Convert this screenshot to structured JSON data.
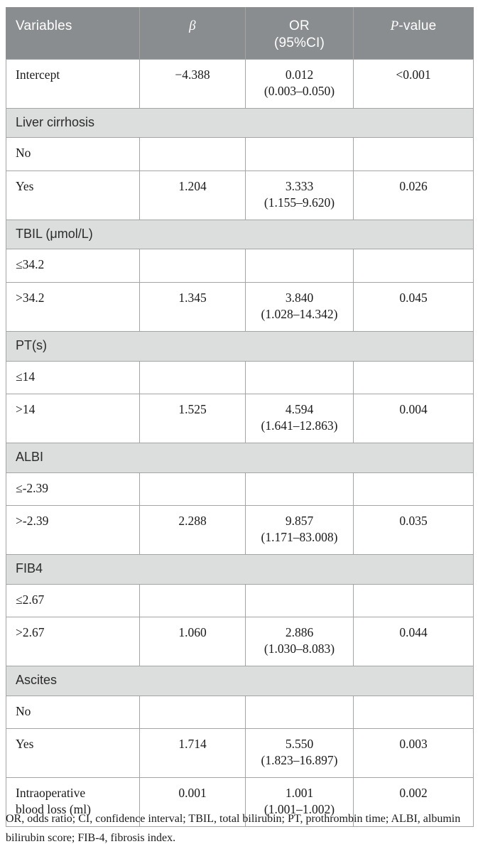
{
  "table": {
    "header": [
      {
        "key": "variables",
        "label": "Variables"
      },
      {
        "key": "beta",
        "label": "β",
        "italic": true
      },
      {
        "key": "or",
        "label": "OR (95%CI)",
        "lines": [
          "OR",
          "(95%CI)"
        ]
      },
      {
        "key": "pvalue",
        "label": "P-value",
        "italic_prefix": "P",
        "rest": "-value"
      }
    ],
    "rows": [
      {
        "type": "data",
        "cells": [
          "Intercept",
          "−4.388",
          [
            "0.012",
            "(0.003–0.050)"
          ],
          "<0.001"
        ]
      },
      {
        "type": "section",
        "label": "Liver cirrhosis"
      },
      {
        "type": "data",
        "cells": [
          "No",
          "",
          "",
          ""
        ]
      },
      {
        "type": "data",
        "cells": [
          "Yes",
          "1.204",
          [
            "3.333",
            "(1.155–9.620)"
          ],
          "0.026"
        ]
      },
      {
        "type": "section",
        "label": "TBIL (μmol/L)"
      },
      {
        "type": "data",
        "cells": [
          "≤34.2",
          "",
          "",
          ""
        ]
      },
      {
        "type": "data",
        "cells": [
          ">34.2",
          "1.345",
          [
            "3.840",
            "(1.028–14.342)"
          ],
          "0.045"
        ]
      },
      {
        "type": "section",
        "label": "PT(s)"
      },
      {
        "type": "data",
        "cells": [
          "≤14",
          "",
          "",
          ""
        ]
      },
      {
        "type": "data",
        "cells": [
          ">14",
          "1.525",
          [
            "4.594",
            "(1.641–12.863)"
          ],
          "0.004"
        ]
      },
      {
        "type": "section",
        "label": "ALBI"
      },
      {
        "type": "data",
        "cells": [
          "≤-2.39",
          "",
          "",
          ""
        ]
      },
      {
        "type": "data",
        "cells": [
          ">-2.39",
          "2.288",
          [
            "9.857",
            "(1.171–83.008)"
          ],
          "0.035"
        ]
      },
      {
        "type": "section",
        "label": "FIB4"
      },
      {
        "type": "data",
        "cells": [
          "≤2.67",
          "",
          "",
          ""
        ]
      },
      {
        "type": "data",
        "cells": [
          ">2.67",
          "1.060",
          [
            "2.886",
            "(1.030–8.083)"
          ],
          "0.044"
        ]
      },
      {
        "type": "section",
        "label": "Ascites"
      },
      {
        "type": "data",
        "cells": [
          "No",
          "",
          "",
          ""
        ]
      },
      {
        "type": "data",
        "cells": [
          "Yes",
          "1.714",
          [
            "5.550",
            "(1.823–16.897)"
          ],
          "0.003"
        ]
      },
      {
        "type": "data",
        "cells": [
          [
            "Intraoperative",
            "blood loss (ml)"
          ],
          "0.001",
          [
            "1.001",
            "(1.001–1.002)"
          ],
          "0.002"
        ]
      }
    ],
    "footnote": "OR, odds ratio; CI, confidence interval; TBIL, total bilirubin; PT, prothrombin time; ALBI, albumin bilirubin score; FIB-4, fibrosis index.",
    "colors": {
      "header_bg": "#8a8d90",
      "header_text": "#ffffff",
      "section_bg": "#dcdedd",
      "border": "#a3a4a5",
      "body_text": "#1a1a1a"
    }
  }
}
